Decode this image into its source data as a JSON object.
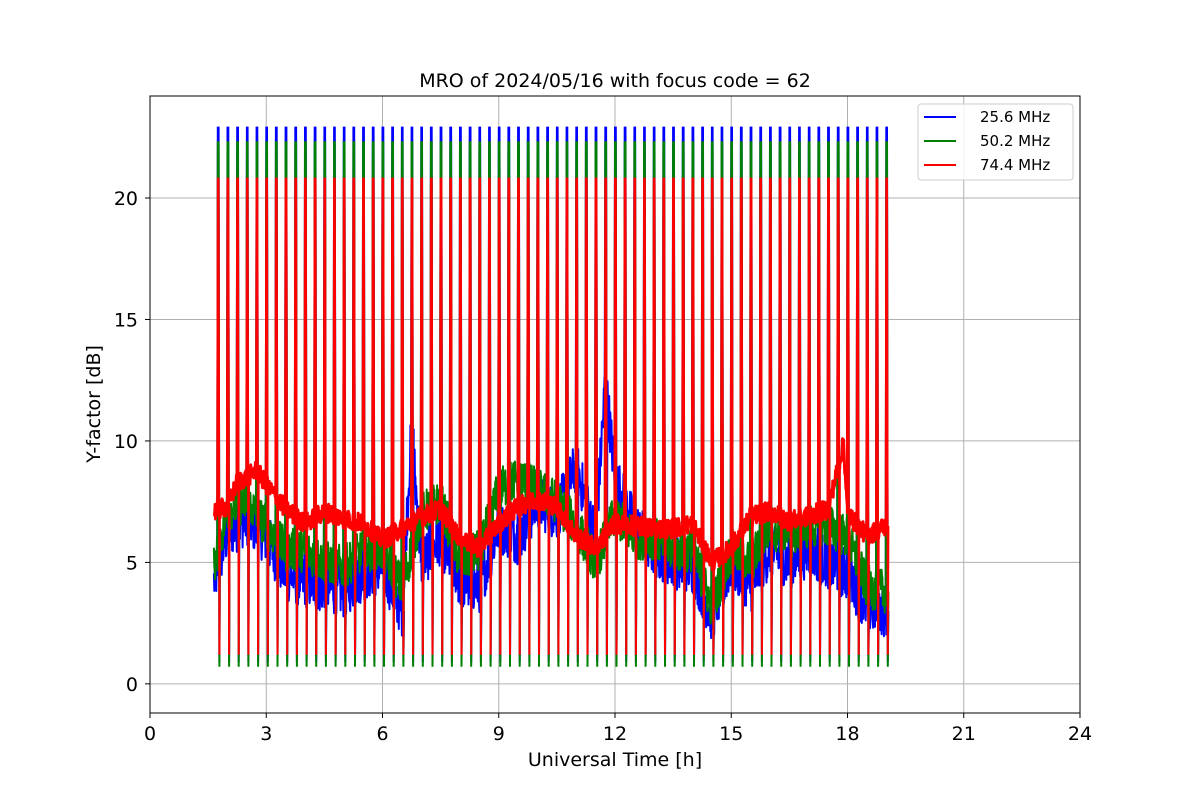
{
  "chart_data": {
    "type": "line",
    "title": "MRO of 2024/05/16 with focus code = 62",
    "xlabel": "Universal Time [h]",
    "ylabel": "Y-factor [dB]",
    "xlim": [
      0,
      24
    ],
    "ylim": [
      -1.2,
      24.2
    ],
    "xticks": [
      0,
      3,
      6,
      9,
      12,
      15,
      18,
      21,
      24
    ],
    "xtick_labels": [
      "0",
      "3",
      "6",
      "9",
      "12",
      "15",
      "18",
      "21",
      "24"
    ],
    "yticks": [
      0,
      5,
      10,
      15,
      20
    ],
    "ytick_labels": [
      "0",
      "5",
      "10",
      "15",
      "20"
    ],
    "grid": true,
    "legend_position": "top-right",
    "data_start_h": 1.65,
    "data_end_h": 19.0,
    "calibration_spikes": {
      "x": [
        1.75,
        2.0,
        2.25,
        2.5,
        2.75,
        3.0,
        3.25,
        3.5,
        3.75,
        4.0,
        4.25,
        4.5,
        4.75,
        5.0,
        5.25,
        5.5,
        5.75,
        6.0,
        6.25,
        6.5,
        6.75,
        7.0,
        7.25,
        7.5,
        7.75,
        8.0,
        8.25,
        8.5,
        8.75,
        9.0,
        9.25,
        9.5,
        9.75,
        10.0,
        10.25,
        10.5,
        10.75,
        11.0,
        11.25,
        11.5,
        11.75,
        12.0,
        12.25,
        12.5,
        12.75,
        13.0,
        13.25,
        13.5,
        13.75,
        14.0,
        14.25,
        14.5,
        14.75,
        15.0,
        15.25,
        15.5,
        15.75,
        16.0,
        16.25,
        16.5,
        16.75,
        17.0,
        17.25,
        17.5,
        17.75,
        18.0,
        18.25,
        18.5,
        18.75,
        19.0
      ],
      "peak_db": {
        "25.6 MHz": 22.9,
        "50.2 MHz": 22.3,
        "74.4 MHz": 20.8
      },
      "trough_db": {
        "25.6 MHz": 0.9,
        "50.2 MHz": 0.7,
        "74.4 MHz": 1.2
      }
    },
    "series": [
      {
        "name": "25.6 MHz",
        "color": "#0000ff",
        "x": [
          1.65,
          2.0,
          2.5,
          3.0,
          3.5,
          4.0,
          4.5,
          5.0,
          5.5,
          6.0,
          6.5,
          6.75,
          7.0,
          7.5,
          8.0,
          8.5,
          9.0,
          9.5,
          10.0,
          10.5,
          11.0,
          11.5,
          11.75,
          12.0,
          12.5,
          13.0,
          13.5,
          14.0,
          14.5,
          15.0,
          15.5,
          16.0,
          16.5,
          17.0,
          17.5,
          18.0,
          18.5,
          19.0
        ],
        "y": [
          4.2,
          6.2,
          6.8,
          6.0,
          4.5,
          4.2,
          4.0,
          3.8,
          4.5,
          4.8,
          3.0,
          10.5,
          5.0,
          6.0,
          4.2,
          4.0,
          6.5,
          6.0,
          7.5,
          7.0,
          9.0,
          6.0,
          12.5,
          8.5,
          6.5,
          5.5,
          5.0,
          4.8,
          2.8,
          5.0,
          4.0,
          5.5,
          5.0,
          5.5,
          5.0,
          4.5,
          3.2,
          3.0
        ]
      },
      {
        "name": "50.2 MHz",
        "color": "#008000",
        "x": [
          1.65,
          2.0,
          2.5,
          3.0,
          3.5,
          4.0,
          4.5,
          5.0,
          5.5,
          6.0,
          6.5,
          7.0,
          7.5,
          8.0,
          8.5,
          9.0,
          9.5,
          10.0,
          10.5,
          11.0,
          11.5,
          12.0,
          12.5,
          13.0,
          13.5,
          14.0,
          14.5,
          15.0,
          15.5,
          16.0,
          16.5,
          17.0,
          17.5,
          18.0,
          18.5,
          19.0
        ],
        "y": [
          4.8,
          7.2,
          7.5,
          6.5,
          5.5,
          5.5,
          5.0,
          4.8,
          5.5,
          5.5,
          4.0,
          7.0,
          7.5,
          5.0,
          5.5,
          8.0,
          8.5,
          8.0,
          7.5,
          6.5,
          5.0,
          7.0,
          6.0,
          6.0,
          5.5,
          5.5,
          3.2,
          5.5,
          5.0,
          6.5,
          6.0,
          6.5,
          6.5,
          6.0,
          4.0,
          3.8
        ]
      },
      {
        "name": "74.4 MHz",
        "color": "#ff0000",
        "x": [
          1.65,
          2.0,
          2.25,
          2.5,
          2.75,
          3.0,
          3.5,
          4.0,
          4.5,
          5.0,
          5.5,
          6.0,
          6.5,
          7.0,
          7.5,
          8.0,
          8.5,
          9.0,
          9.5,
          10.0,
          10.5,
          11.0,
          11.5,
          12.0,
          12.5,
          13.0,
          13.5,
          14.0,
          14.5,
          15.0,
          15.5,
          16.0,
          16.5,
          17.0,
          17.5,
          17.9,
          18.0,
          18.5,
          19.0
        ],
        "y": [
          7.1,
          7.3,
          8.3,
          8.5,
          8.8,
          8.2,
          7.2,
          6.6,
          7.1,
          6.8,
          6.6,
          5.9,
          6.4,
          6.9,
          7.2,
          6.0,
          5.6,
          6.6,
          7.3,
          7.6,
          7.3,
          6.1,
          5.6,
          6.6,
          6.5,
          6.4,
          6.4,
          6.6,
          5.0,
          5.6,
          6.9,
          7.1,
          6.7,
          6.9,
          7.2,
          9.9,
          7.0,
          6.1,
          6.5
        ]
      }
    ]
  }
}
